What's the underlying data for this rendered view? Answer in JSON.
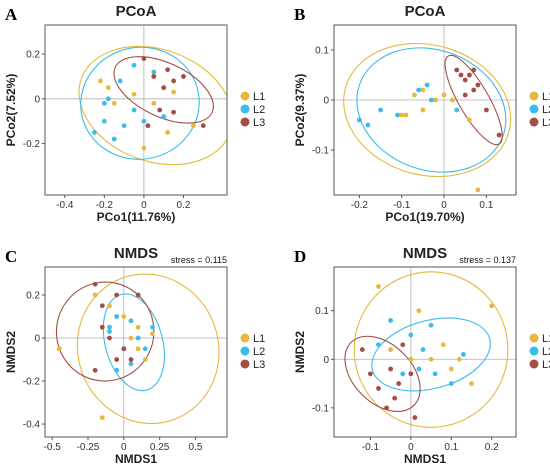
{
  "colors": {
    "L1": "#E6B83C",
    "L2": "#3BBCEA",
    "L3": "#A14F45"
  },
  "chart_data": [
    {
      "panel": "A",
      "type": "scatter",
      "title": "PCoA",
      "xlabel": "PCo1(11.76%)",
      "ylabel": "PCo2(7.52%)",
      "stress": "",
      "xlim": [
        -0.5,
        0.42
      ],
      "ylim": [
        -0.43,
        0.33
      ],
      "xticks": [
        -0.4,
        -0.2,
        0,
        0.2
      ],
      "xtick_labels": [
        "-0.4",
        "-0.2",
        "0",
        "0.2"
      ],
      "yticks": [
        -0.2,
        0,
        0.2
      ],
      "ytick_labels": [
        "-0.2",
        "0",
        "0.2"
      ],
      "grid": false,
      "legend_position": "right",
      "series": [
        {
          "name": "L1",
          "points": [
            [
              -0.22,
              0.08
            ],
            [
              -0.18,
              0.05
            ],
            [
              -0.05,
              0.02
            ],
            [
              0.05,
              0.1
            ],
            [
              0.15,
              0.03
            ],
            [
              0.25,
              -0.12
            ],
            [
              0.12,
              -0.15
            ],
            [
              -0.15,
              -0.02
            ],
            [
              0.0,
              -0.22
            ],
            [
              0.05,
              -0.02
            ]
          ],
          "ellipse": {
            "cx": 0.06,
            "cy": -0.03,
            "rx": 0.4,
            "ry": 0.25,
            "angle": -20
          }
        },
        {
          "name": "L2",
          "points": [
            [
              -0.25,
              -0.15
            ],
            [
              -0.2,
              -0.1
            ],
            [
              -0.15,
              -0.18
            ],
            [
              -0.1,
              -0.12
            ],
            [
              -0.05,
              -0.05
            ],
            [
              -0.05,
              0.15
            ],
            [
              0.05,
              0.12
            ],
            [
              0.1,
              -0.08
            ],
            [
              -0.12,
              0.08
            ],
            [
              -0.2,
              -0.02
            ],
            [
              0.0,
              -0.1
            ],
            [
              -0.18,
              0.0
            ]
          ],
          "ellipse": {
            "cx": -0.02,
            "cy": -0.02,
            "rx": 0.3,
            "ry": 0.25,
            "angle": 10
          }
        },
        {
          "name": "L3",
          "points": [
            [
              0.0,
              0.18
            ],
            [
              0.05,
              0.1
            ],
            [
              0.1,
              0.05
            ],
            [
              0.15,
              0.08
            ],
            [
              0.2,
              0.1
            ],
            [
              0.08,
              -0.05
            ],
            [
              0.3,
              -0.12
            ],
            [
              0.02,
              -0.12
            ],
            [
              0.15,
              -0.06
            ],
            [
              0.12,
              0.13
            ]
          ],
          "ellipse": {
            "cx": 0.1,
            "cy": 0.04,
            "rx": 0.27,
            "ry": 0.12,
            "angle": -25
          }
        }
      ]
    },
    {
      "panel": "B",
      "type": "scatter",
      "title": "PCoA",
      "xlabel": "PCo1(19.70%)",
      "ylabel": "PCo2(9.37%)",
      "stress": "",
      "xlim": [
        -0.26,
        0.17
      ],
      "ylim": [
        -0.19,
        0.15
      ],
      "xticks": [
        -0.2,
        -0.1,
        0,
        0.1
      ],
      "xtick_labels": [
        "-0.2",
        "-0.1",
        "0",
        "0.1"
      ],
      "yticks": [
        -0.1,
        0,
        0.1
      ],
      "ytick_labels": [
        "-0.1",
        "0",
        "0.1"
      ],
      "grid": false,
      "legend_position": "right",
      "series": [
        {
          "name": "L1",
          "points": [
            [
              -0.07,
              0.01
            ],
            [
              -0.05,
              0.02
            ],
            [
              -0.02,
              0.0
            ],
            [
              0.0,
              0.01
            ],
            [
              0.02,
              0.0
            ],
            [
              -0.1,
              -0.03
            ],
            [
              -0.09,
              -0.03
            ],
            [
              0.08,
              -0.18
            ],
            [
              0.06,
              -0.04
            ],
            [
              -0.05,
              -0.02
            ]
          ],
          "ellipse": {
            "cx": -0.04,
            "cy": -0.02,
            "rx": 0.2,
            "ry": 0.13,
            "angle": -15
          }
        },
        {
          "name": "L2",
          "points": [
            [
              -0.2,
              -0.04
            ],
            [
              -0.18,
              -0.05
            ],
            [
              -0.11,
              -0.03
            ],
            [
              -0.06,
              0.02
            ],
            [
              -0.04,
              0.03
            ],
            [
              -0.03,
              0.0
            ],
            [
              -0.15,
              -0.02
            ],
            [
              0.03,
              -0.02
            ]
          ],
          "ellipse": {
            "cx": -0.03,
            "cy": -0.02,
            "rx": 0.18,
            "ry": 0.12,
            "angle": -20
          }
        },
        {
          "name": "L3",
          "points": [
            [
              0.03,
              0.06
            ],
            [
              0.04,
              0.05
            ],
            [
              0.05,
              0.04
            ],
            [
              0.06,
              0.05
            ],
            [
              0.07,
              0.06
            ],
            [
              0.08,
              0.03
            ],
            [
              0.05,
              0.01
            ],
            [
              0.1,
              -0.02
            ],
            [
              0.13,
              -0.07
            ],
            [
              0.07,
              0.02
            ]
          ],
          "ellipse": {
            "cx": 0.07,
            "cy": 0.0,
            "rx": 0.12,
            "ry": 0.03,
            "angle": -60
          }
        }
      ]
    },
    {
      "panel": "C",
      "type": "scatter",
      "title": "NMDS",
      "xlabel": "NMDS1",
      "ylabel": "NMDS2",
      "stress": "stress = 0.115",
      "xlim": [
        -0.55,
        0.72
      ],
      "ylim": [
        -0.46,
        0.33
      ],
      "xticks": [
        -0.5,
        -0.25,
        0,
        0.25,
        0.5
      ],
      "xtick_labels": [
        "-0.5",
        "-0.25",
        "0",
        "0.25",
        "0.5"
      ],
      "yticks": [
        -0.4,
        -0.2,
        0,
        0.2
      ],
      "ytick_labels": [
        "-0.4",
        "-0.2",
        "0",
        "0.2"
      ],
      "grid": false,
      "legend_position": "right",
      "series": [
        {
          "name": "L1",
          "points": [
            [
              -0.45,
              -0.05
            ],
            [
              -0.1,
              0.15
            ],
            [
              0.0,
              0.1
            ],
            [
              0.1,
              0.05
            ],
            [
              0.2,
              0.02
            ],
            [
              0.1,
              -0.05
            ],
            [
              -0.2,
              0.2
            ],
            [
              -0.15,
              -0.37
            ],
            [
              0.15,
              -0.1
            ],
            [
              0.05,
              0.0
            ]
          ],
          "ellipse": {
            "cx": 0.17,
            "cy": -0.05,
            "rx": 0.49,
            "ry": 0.35,
            "angle": 20
          }
        },
        {
          "name": "L2",
          "points": [
            [
              -0.1,
              0.05
            ],
            [
              -0.05,
              0.1
            ],
            [
              0.05,
              0.08
            ],
            [
              0.1,
              0.0
            ],
            [
              0.15,
              -0.05
            ],
            [
              0.0,
              -0.05
            ],
            [
              -0.05,
              -0.15
            ],
            [
              0.05,
              -0.12
            ],
            [
              0.2,
              0.05
            ],
            [
              -0.1,
              0.03
            ]
          ],
          "ellipse": {
            "cx": 0.07,
            "cy": -0.02,
            "rx": 0.2,
            "ry": 0.23,
            "angle": 15
          }
        },
        {
          "name": "L3",
          "points": [
            [
              -0.2,
              0.25
            ],
            [
              -0.15,
              0.15
            ],
            [
              -0.1,
              0.0
            ],
            [
              -0.05,
              0.2
            ],
            [
              0.0,
              -0.05
            ],
            [
              0.05,
              -0.1
            ],
            [
              -0.2,
              -0.15
            ],
            [
              0.1,
              0.2
            ],
            [
              -0.15,
              0.05
            ],
            [
              -0.05,
              -0.1
            ]
          ],
          "ellipse": {
            "cx": -0.13,
            "cy": 0.03,
            "rx": 0.34,
            "ry": 0.23,
            "angle": -10
          }
        }
      ]
    },
    {
      "panel": "D",
      "type": "scatter",
      "title": "NMDS",
      "xlabel": "NMDS1",
      "ylabel": "NMDS2",
      "stress": "stress = 0.137",
      "xlim": [
        -0.19,
        0.26
      ],
      "ylim": [
        -0.16,
        0.19
      ],
      "xticks": [
        -0.1,
        0,
        0.1,
        0.2
      ],
      "xtick_labels": [
        "-0.1",
        "0",
        "0.1",
        "0.2"
      ],
      "yticks": [
        -0.1,
        0,
        0.1
      ],
      "ytick_labels": [
        "-0.1",
        "0",
        "0.1"
      ],
      "grid": false,
      "legend_position": "right",
      "series": [
        {
          "name": "L1",
          "points": [
            [
              -0.08,
              0.15
            ],
            [
              0.02,
              0.1
            ],
            [
              0.05,
              0.0
            ],
            [
              0.1,
              -0.02
            ],
            [
              0.15,
              -0.05
            ],
            [
              0.2,
              0.11
            ],
            [
              -0.05,
              0.02
            ],
            [
              0.08,
              0.03
            ],
            [
              0.12,
              0.0
            ],
            [
              0.0,
              0.0
            ]
          ],
          "ellipse": {
            "cx": 0.05,
            "cy": 0.02,
            "rx": 0.19,
            "ry": 0.16,
            "angle": 0
          }
        },
        {
          "name": "L2",
          "points": [
            [
              -0.05,
              0.08
            ],
            [
              0.0,
              0.05
            ],
            [
              0.03,
              0.02
            ],
            [
              0.06,
              -0.03
            ],
            [
              0.1,
              -0.05
            ],
            [
              0.13,
              0.01
            ],
            [
              -0.02,
              -0.03
            ],
            [
              0.02,
              -0.02
            ],
            [
              -0.08,
              0.03
            ],
            [
              0.05,
              0.07
            ]
          ],
          "ellipse": {
            "cx": 0.05,
            "cy": 0.01,
            "rx": 0.15,
            "ry": 0.07,
            "angle": 15
          }
        },
        {
          "name": "L3",
          "points": [
            [
              -0.12,
              0.02
            ],
            [
              -0.1,
              -0.03
            ],
            [
              -0.08,
              -0.06
            ],
            [
              -0.05,
              -0.02
            ],
            [
              -0.03,
              -0.05
            ],
            [
              -0.02,
              0.03
            ],
            [
              0.0,
              -0.03
            ],
            [
              -0.06,
              -0.1
            ],
            [
              0.01,
              -0.12
            ],
            [
              -0.04,
              -0.08
            ]
          ],
          "ellipse": {
            "cx": -0.07,
            "cy": -0.03,
            "rx": 0.11,
            "ry": 0.06,
            "angle": -45
          }
        }
      ]
    }
  ]
}
